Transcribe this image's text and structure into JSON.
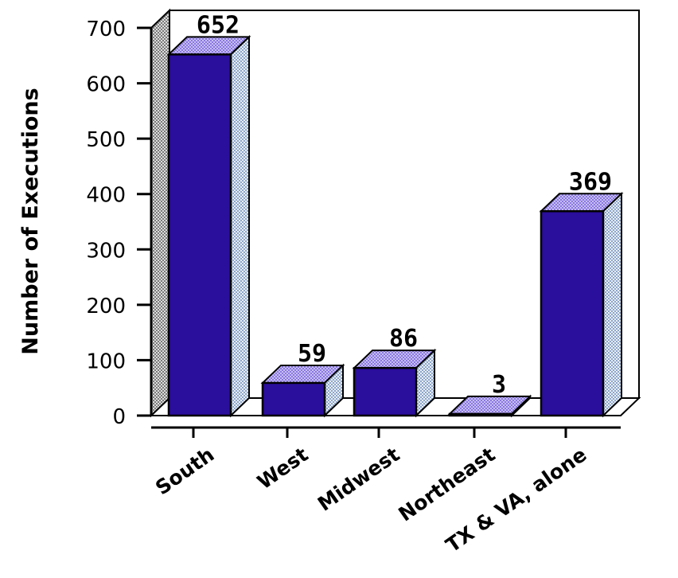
{
  "chart_data": {
    "type": "bar",
    "title": "",
    "xlabel": "",
    "ylabel": "Number of Executions",
    "ylim": [
      0,
      700
    ],
    "yticks": [
      0,
      100,
      200,
      300,
      400,
      500,
      600,
      700
    ],
    "grid": false,
    "categories": [
      "South",
      "West",
      "Midwest",
      "Northeast",
      "TX & VA, alone"
    ],
    "values": [
      652,
      59,
      86,
      3,
      369
    ],
    "data_labels": [
      "652",
      "59",
      "86",
      "3",
      "369"
    ],
    "style": "3d",
    "colors": {
      "bar_front": "#2a0e9c",
      "bar_top": "#9d8ee6",
      "bar_side": "#b6c6de"
    }
  }
}
